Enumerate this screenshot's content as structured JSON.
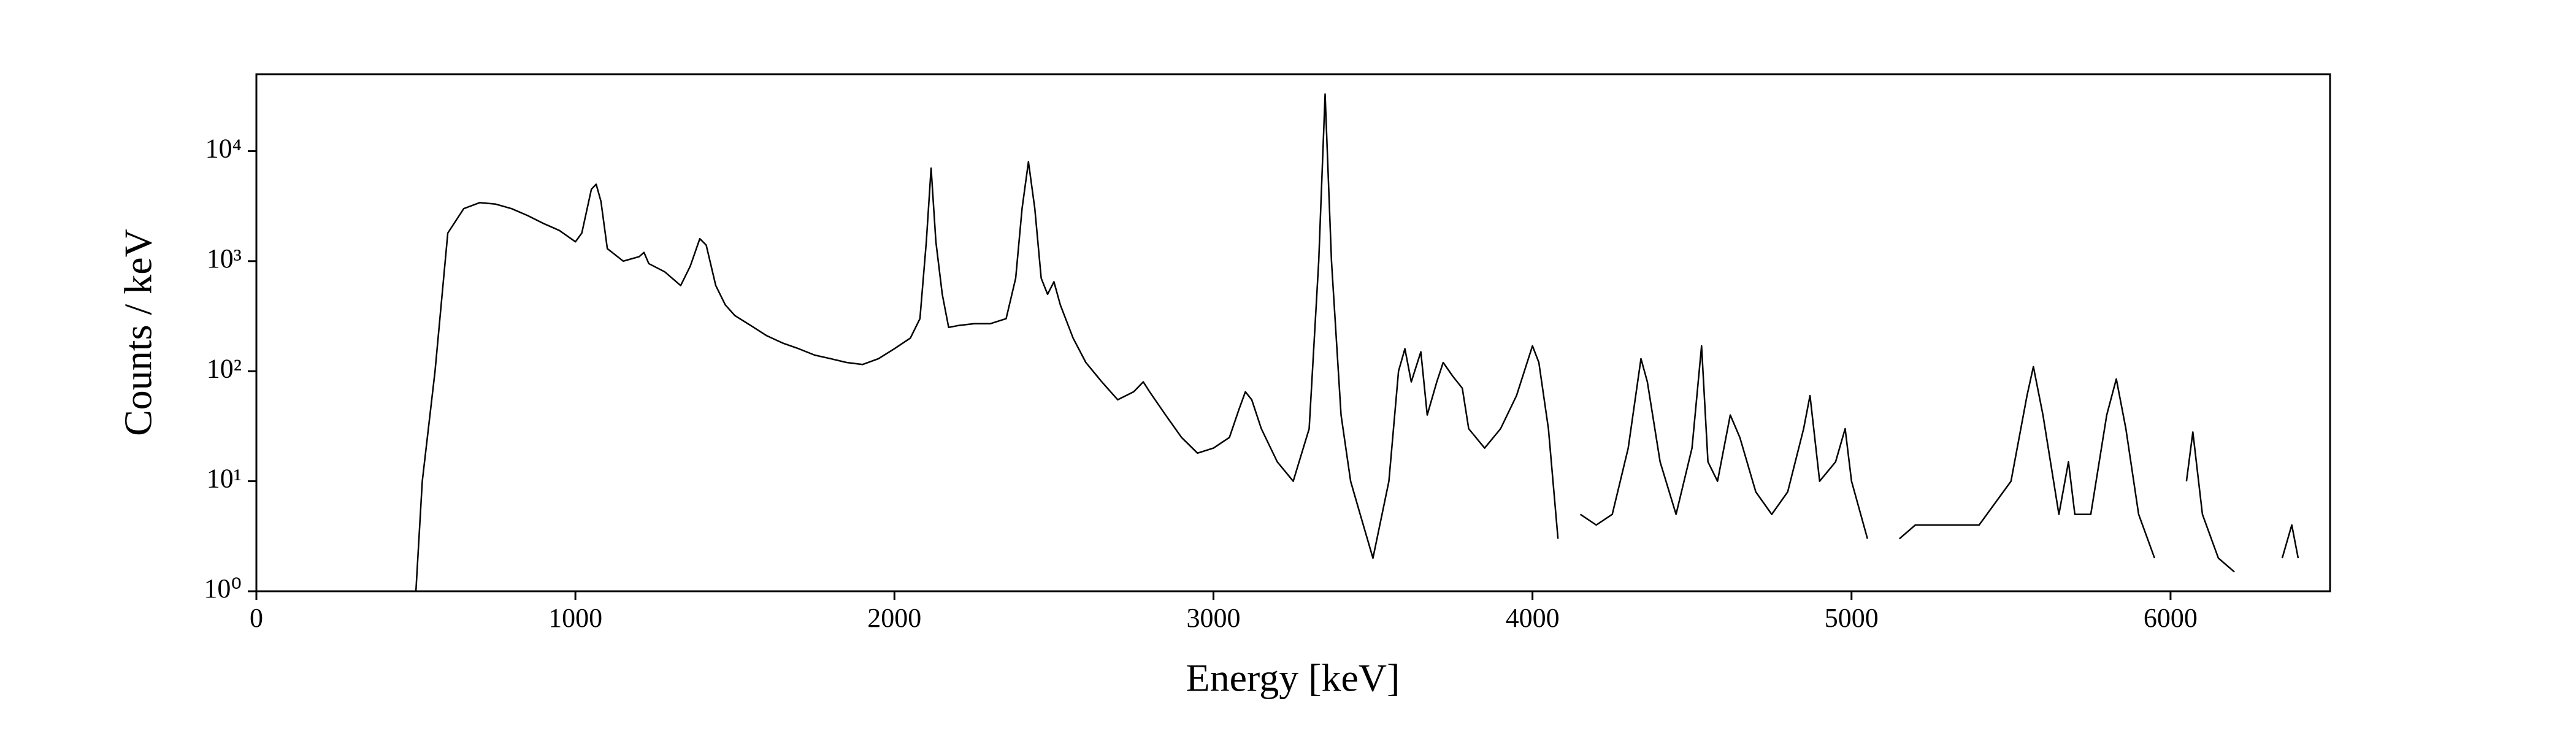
{
  "chart_data": {
    "type": "line",
    "x_label": "Energy [keV]",
    "y_label": "Counts / keV",
    "color": "#000000",
    "y_scale": "log",
    "xlim": [
      0,
      6500
    ],
    "xticks": [
      0,
      1000,
      2000,
      3000,
      4000,
      5000,
      6000
    ],
    "ylim": [
      1,
      50000
    ],
    "yticks": [
      {
        "value": 1,
        "label": "10⁰"
      },
      {
        "value": 10,
        "label": "10¹"
      },
      {
        "value": 100,
        "label": "10²"
      },
      {
        "value": 1000,
        "label": "10³"
      },
      {
        "value": 10000,
        "label": "10⁴"
      }
    ],
    "x": [
      500,
      520,
      560,
      600,
      650,
      700,
      750,
      800,
      850,
      900,
      950,
      1000,
      1020,
      1050,
      1065,
      1080,
      1100,
      1150,
      1200,
      1215,
      1230,
      1280,
      1330,
      1360,
      1390,
      1410,
      1440,
      1470,
      1500,
      1550,
      1600,
      1650,
      1700,
      1750,
      1800,
      1850,
      1900,
      1950,
      2000,
      2050,
      2080,
      2100,
      2115,
      2130,
      2150,
      2170,
      2200,
      2250,
      2300,
      2350,
      2380,
      2400,
      2420,
      2440,
      2460,
      2480,
      2500,
      2520,
      2560,
      2600,
      2650,
      2700,
      2750,
      2780,
      2800,
      2850,
      2900,
      2950,
      3000,
      3050,
      3080,
      3100,
      3120,
      3150,
      3200,
      3250,
      3300,
      3330,
      3350,
      3370,
      3400,
      3430,
      3460,
      3500,
      3550,
      3580,
      3600,
      3620,
      3650,
      3670,
      3700,
      3720,
      3750,
      3780,
      3800,
      3850,
      3900,
      3950,
      4000,
      4020,
      4050,
      4080,
      4100,
      4150,
      4200,
      4250,
      4300,
      4340,
      4360,
      4400,
      4450,
      4500,
      4530,
      4550,
      4580,
      4620,
      4650,
      4700,
      4750,
      4800,
      4850,
      4870,
      4900,
      4950,
      4980,
      5000,
      5050,
      5100,
      5150,
      5200,
      5300,
      5400,
      5500,
      5550,
      5570,
      5600,
      5650,
      5680,
      5700,
      5750,
      5800,
      5830,
      5860,
      5900,
      5950,
      6000,
      6050,
      6070,
      6100,
      6150,
      6200,
      6250,
      6350,
      6380,
      6400
    ],
    "values": [
      1,
      10,
      100,
      1800,
      3000,
      3400,
      3300,
      3000,
      2600,
      2200,
      1900,
      1500,
      1800,
      4500,
      5000,
      3500,
      1300,
      1000,
      1100,
      1200,
      950,
      800,
      600,
      900,
      1600,
      1400,
      600,
      400,
      320,
      260,
      210,
      180,
      160,
      140,
      130,
      120,
      115,
      130,
      160,
      200,
      300,
      1500,
      7000,
      1500,
      500,
      250,
      260,
      270,
      270,
      300,
      700,
      3000,
      8000,
      3000,
      700,
      500,
      650,
      400,
      200,
      120,
      80,
      55,
      65,
      80,
      65,
      40,
      25,
      18,
      20,
      25,
      45,
      65,
      55,
      30,
      15,
      10,
      30,
      1000,
      33000,
      1000,
      40,
      10,
      5,
      2,
      10,
      100,
      160,
      80,
      150,
      40,
      80,
      120,
      90,
      70,
      30,
      20,
      30,
      60,
      170,
      120,
      30,
      3,
      null,
      5,
      4,
      5,
      20,
      130,
      80,
      15,
      5,
      20,
      170,
      15,
      10,
      40,
      25,
      8,
      5,
      8,
      30,
      60,
      10,
      15,
      30,
      10,
      3,
      null,
      3,
      4,
      4,
      4,
      10,
      60,
      110,
      40,
      5,
      15,
      5,
      5,
      40,
      85,
      30,
      5,
      2,
      null,
      10,
      28,
      5,
      2,
      1.5,
      null,
      2,
      4,
      2
    ]
  }
}
